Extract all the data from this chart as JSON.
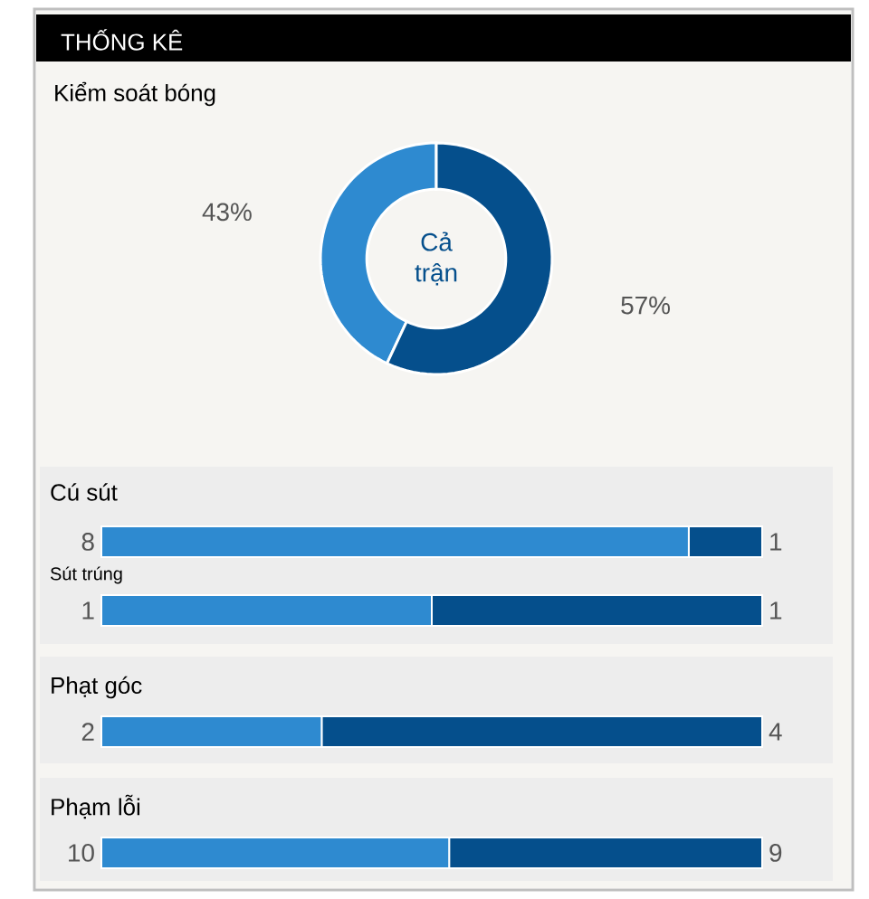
{
  "chart_data": [
    {
      "type": "donut",
      "title": "THỐNG KÊ",
      "subtitle": "Kiểm soát bóng",
      "categories": [
        null,
        null
      ],
      "values": [
        43,
        57
      ],
      "colors": [
        "#2e8ad0",
        "#054f8c"
      ],
      "value_labels": [
        "43%",
        "57%"
      ],
      "annotations": [
        "Cả trận"
      ]
    },
    {
      "type": "bar",
      "orientation": "horizontal",
      "stacked": true,
      "title": "Cú sút",
      "categories": [
        null
      ],
      "data_labels": true,
      "series": [
        {
          "color": "#2e8ad0",
          "values": [
            8
          ]
        },
        {
          "color": "#054f8c",
          "values": [
            1
          ]
        }
      ]
    },
    {
      "type": "bar",
      "orientation": "horizontal",
      "stacked": true,
      "title": "Sút trúng",
      "categories": [
        null
      ],
      "data_labels": true,
      "series": [
        {
          "color": "#2e8ad0",
          "values": [
            1
          ]
        },
        {
          "color": "#054f8c",
          "values": [
            1
          ]
        }
      ]
    },
    {
      "type": "bar",
      "orientation": "horizontal",
      "stacked": true,
      "title": "Phạt góc",
      "categories": [
        null
      ],
      "data_labels": true,
      "series": [
        {
          "color": "#2e8ad0",
          "values": [
            2
          ]
        },
        {
          "color": "#054f8c",
          "values": [
            4
          ]
        }
      ]
    },
    {
      "type": "bar",
      "orientation": "horizontal",
      "stacked": true,
      "title": "Phạm lỗi",
      "categories": [
        null
      ],
      "data_labels": true,
      "series": [
        {
          "color": "#2e8ad0",
          "values": [
            10
          ]
        },
        {
          "color": "#054f8c",
          "values": [
            9
          ]
        }
      ]
    }
  ]
}
